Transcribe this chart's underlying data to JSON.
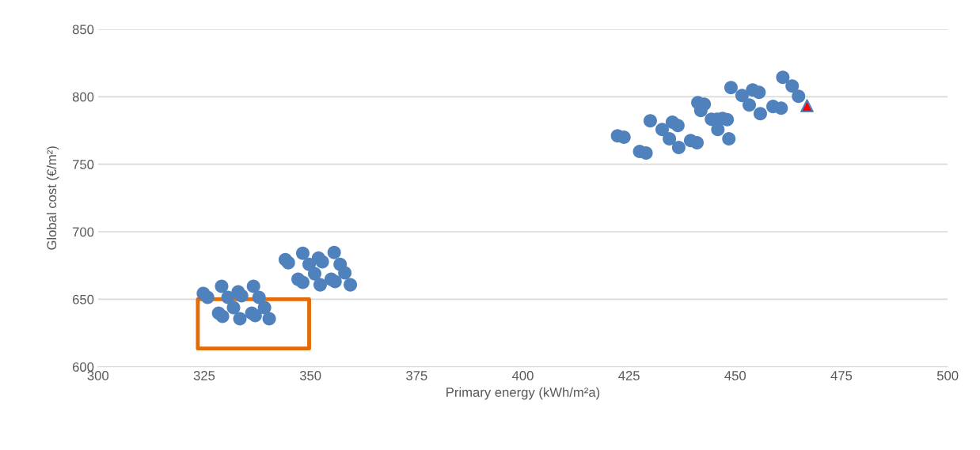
{
  "chart_data": {
    "type": "scatter",
    "xlabel": "Primary energy (kWh/m²a)",
    "ylabel": "Global cost (€/m²)",
    "xlim": [
      300,
      500
    ],
    "xticks": [
      300,
      325,
      350,
      375,
      400,
      425,
      450,
      475,
      500
    ],
    "ylim": [
      600,
      850
    ],
    "yticks": [
      600,
      650,
      700,
      750,
      800,
      850
    ],
    "grid": "y",
    "legend": false,
    "series": [
      {
        "color": "#4f81bd",
        "marker": "circle",
        "x": [
          324.8,
          325.8,
          329.1,
          330.6,
          331.9,
          333.0,
          333.8,
          336.6,
          337.9,
          328.4,
          329.3,
          333.4,
          336.2,
          337.0,
          339.2,
          340.3,
          344.1,
          344.8,
          348.2,
          347.1,
          348.2,
          349.7,
          351.0,
          351.9,
          352.8,
          352.3,
          354.9,
          355.8,
          355.6,
          357.0,
          358.1,
          359.4,
          422.3,
          423.8,
          427.5,
          429.0,
          430.0,
          432.8,
          434.5,
          435.2,
          436.5,
          436.7,
          439.5,
          441.0,
          441.2,
          441.9,
          442.7,
          444.4,
          445.7,
          445.9,
          447.0,
          448.1,
          448.5,
          449.0,
          451.6,
          453.3,
          454.1,
          455.6,
          455.9,
          458.9,
          460.8,
          461.2,
          463.4,
          464.9
        ],
        "values": [
          654.3,
          651.4,
          659.6,
          651.4,
          643.8,
          655.5,
          652.6,
          659.6,
          651.4,
          639.7,
          637.4,
          635.6,
          639.7,
          637.9,
          643.8,
          635.6,
          679.4,
          677.1,
          684.1,
          664.8,
          662.5,
          675.9,
          668.9,
          680.6,
          677.7,
          660.7,
          664.8,
          663.1,
          684.7,
          675.9,
          669.5,
          660.7,
          771.1,
          770.0,
          759.5,
          758.3,
          782.2,
          775.8,
          768.8,
          781.1,
          778.7,
          762.4,
          767.6,
          765.9,
          795.7,
          789.8,
          794.5,
          783.4,
          783.4,
          775.8,
          784.0,
          783.0,
          768.8,
          806.8,
          800.9,
          793.9,
          805.0,
          803.3,
          787.5,
          792.8,
          791.6,
          814.4,
          807.9,
          800.4
        ]
      },
      {
        "color": "#ff0000",
        "marker": "triangle",
        "x": [
          466.9
        ],
        "values": [
          793.3
        ]
      }
    ]
  }
}
